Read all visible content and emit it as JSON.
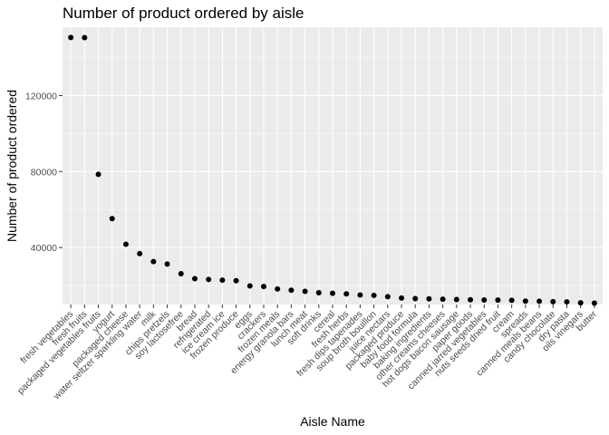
{
  "chart_data": {
    "type": "scatter",
    "title": "Number of product ordered by aisle",
    "xlabel": "Aisle Name",
    "ylabel": "Number of product ordered",
    "ylim": [
      10000,
      156000
    ],
    "yticks": [
      40000,
      80000,
      120000
    ],
    "ytick_labels": [
      "40000",
      "80000",
      "120000"
    ],
    "colors": {
      "panel": "#ebebeb",
      "grid": "#ffffff",
      "point": "#000000",
      "tick": "#333333"
    },
    "categories": [
      "fresh vegetables",
      "fresh fruits",
      "packaged vegetables fruits",
      "yogurt",
      "packaged cheese",
      "water seltzer sparkling water",
      "milk",
      "chips pretzels",
      "soy lactosefree",
      "bread",
      "refrigerated",
      "ice cream ice",
      "frozen produce",
      "eggs",
      "crackers",
      "frozen meals",
      "energy granola bars",
      "lunch meat",
      "soft drinks",
      "cereal",
      "fresh herbs",
      "fresh dips tapenades",
      "soup broth bouillon",
      "juice nectars",
      "packaged produce",
      "baby food formula",
      "baking ingredients",
      "other creams cheeses",
      "hot dogs bacon sausage",
      "paper goods",
      "canned jarred vegetables",
      "nuts seeds dried fruit",
      "cream",
      "spreads",
      "canned meals beans",
      "candy chocolate",
      "dry pasta",
      "oils vinegars",
      "butter"
    ],
    "values": [
      150600,
      150500,
      78500,
      55200,
      41700,
      36800,
      32600,
      31300,
      26200,
      23600,
      23200,
      22800,
      22500,
      19800,
      19500,
      18200,
      17500,
      16900,
      16200,
      15900,
      15600,
      15000,
      14800,
      14100,
      13400,
      13100,
      13000,
      12800,
      12600,
      12500,
      12400,
      12300,
      12200,
      11800,
      11700,
      11500,
      11400,
      10900,
      10700
    ]
  }
}
